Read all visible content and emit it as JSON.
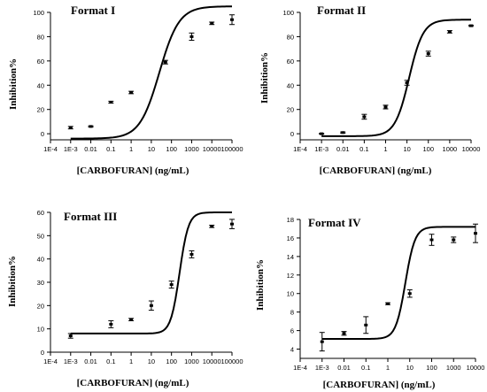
{
  "chart_data": [
    {
      "type": "scatter",
      "title": "Format I",
      "xlabel": "[CARBOFURAN] (ng/mL)",
      "ylabel": "Inhibition%",
      "x_scale": "log",
      "x_ticks": [
        "1E-4",
        "1E-3",
        "0.01",
        "0.1",
        "1",
        "10",
        "100",
        "1000",
        "10000",
        "100000"
      ],
      "xlim": [
        0.0001,
        100000
      ],
      "ylim": [
        -5,
        100
      ],
      "y_ticks": [
        0,
        20,
        40,
        60,
        80,
        100
      ],
      "series": [
        {
          "x": [
            0.001,
            0.01,
            0.1,
            1,
            50,
            1000,
            10000,
            100000
          ],
          "y": [
            5,
            6,
            26,
            34,
            59,
            80,
            91,
            94
          ],
          "error": [
            1,
            0.5,
            0.8,
            1,
            1.5,
            3,
            1,
            4
          ]
        }
      ],
      "fit": {
        "bottom": -4,
        "top": 105,
        "logEC50": 1.4,
        "slope": 0.27
      }
    },
    {
      "type": "scatter",
      "title": "Format II",
      "xlabel": "[CARBOFURAN] (ng/mL)",
      "ylabel": "Inhibition%",
      "x_scale": "log",
      "x_ticks": [
        "1E-4",
        "1E-3",
        "0.01",
        "0.1",
        "1",
        "10",
        "100",
        "1000",
        "10000"
      ],
      "xlim": [
        0.0001,
        10000
      ],
      "ylim": [
        -5,
        100
      ],
      "y_ticks": [
        0,
        20,
        40,
        60,
        80,
        100
      ],
      "series": [
        {
          "x": [
            0.001,
            0.01,
            0.1,
            1,
            10,
            100,
            1000,
            10000
          ],
          "y": [
            0,
            1,
            14,
            22,
            42,
            66,
            84,
            89
          ],
          "error": [
            0.3,
            0.5,
            2,
            1.5,
            2,
            2,
            1,
            0.5
          ]
        }
      ],
      "fit": {
        "bottom": -2,
        "top": 94,
        "logEC50": 1.1,
        "slope": 0.4
      }
    },
    {
      "type": "scatter",
      "title": "Format III",
      "xlabel": "[CARBOFURAN] (ng/mL)",
      "ylabel": "Inhibition%",
      "x_scale": "log",
      "x_ticks": [
        "1E-4",
        "1E-3",
        "0.01",
        "0.1",
        "1",
        "10",
        "100",
        "1000",
        "10000",
        "100000"
      ],
      "xlim": [
        0.0001,
        100000
      ],
      "ylim": [
        0,
        60
      ],
      "y_ticks": [
        0,
        10,
        20,
        30,
        40,
        50,
        60
      ],
      "series": [
        {
          "x": [
            0.001,
            0.1,
            1,
            10,
            100,
            1000,
            10000,
            100000
          ],
          "y": [
            7,
            12,
            14,
            20,
            29,
            42,
            54,
            55
          ],
          "error": [
            1,
            1.5,
            0.5,
            2,
            1.5,
            1.5,
            0.5,
            2
          ]
        }
      ],
      "fit": {
        "bottom": 8,
        "top": 60,
        "logEC50": 2.4,
        "slope": 0.6
      }
    },
    {
      "type": "scatter",
      "title": "Format IV",
      "xlabel": "[CARBOFURAN] (ng/mL)",
      "ylabel": "Inhibition%",
      "x_scale": "log",
      "x_ticks": [
        "1E-4",
        "1E-3",
        "0.01",
        "0.1",
        "1",
        "10",
        "100",
        "1000",
        "10000"
      ],
      "xlim": [
        0.0001,
        10000
      ],
      "ylim": [
        3,
        18
      ],
      "y_ticks": [
        4,
        6,
        8,
        10,
        12,
        14,
        16,
        18
      ],
      "series": [
        {
          "x": [
            0.001,
            0.01,
            0.1,
            1,
            10,
            100,
            1000,
            10000
          ],
          "y": [
            4.8,
            5.7,
            6.6,
            8.9,
            10,
            15.8,
            15.8,
            16.5
          ],
          "error": [
            1,
            0.2,
            0.9,
            0.1,
            0.4,
            0.6,
            0.3,
            1
          ]
        }
      ],
      "fit": {
        "bottom": 5.1,
        "top": 17.2,
        "logEC50": 0.8,
        "slope": 0.6
      }
    }
  ]
}
